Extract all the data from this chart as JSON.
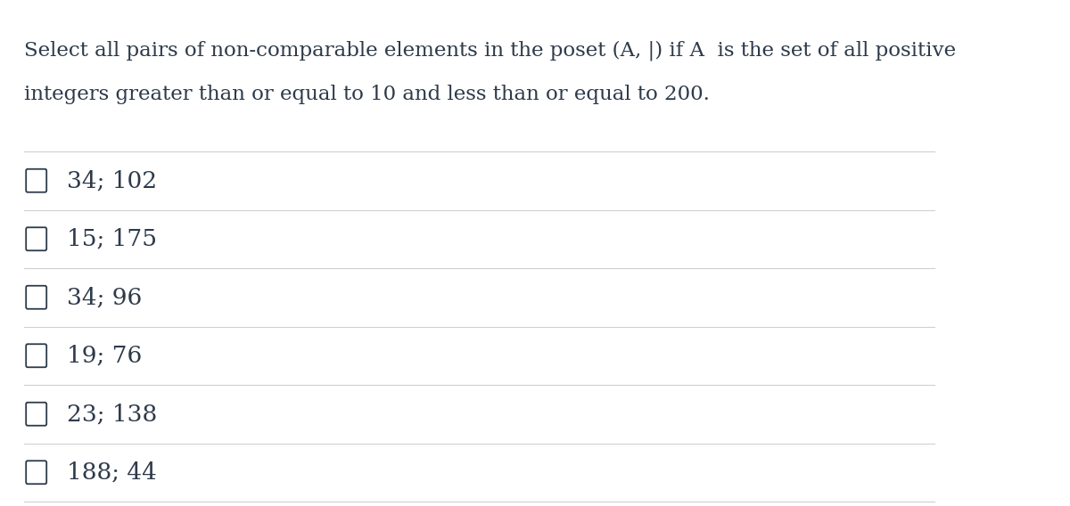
{
  "background_color": "#ffffff",
  "text_color": "#2d3a4a",
  "question_line1": "Select all pairs of non-comparable elements in the poset (A, |) if A  is the set of all positive",
  "question_line2": "integers greater than or equal to 10 and less than or equal to 200.",
  "options": [
    "34; 102",
    "15; 175",
    "34; 96",
    "19; 76",
    "23; 138",
    "188; 44"
  ],
  "question_fontsize": 16.5,
  "option_fontsize": 19,
  "line_color": "#d0d0d0",
  "fig_width": 12.0,
  "fig_height": 5.68,
  "dpi": 100
}
